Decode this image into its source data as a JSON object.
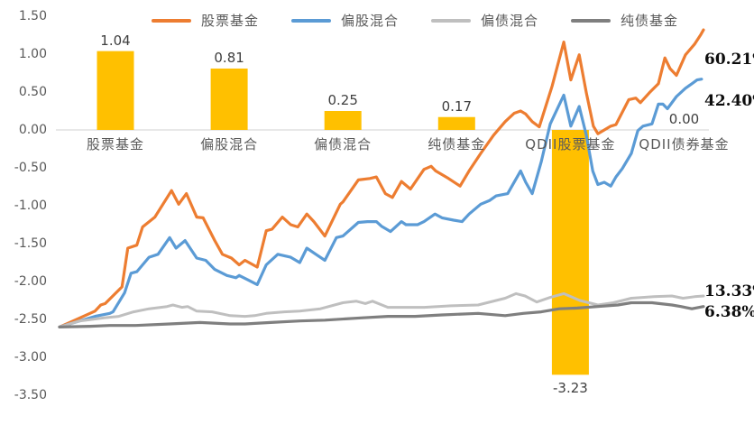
{
  "chart_data": {
    "type": "bar+line combo",
    "title": "",
    "grid": "off",
    "y_axis": {
      "min": -3.5,
      "max": 1.5,
      "ticks": [
        "1.50",
        "1.00",
        "0.50",
        "0.00",
        "-0.50",
        "-1.00",
        "-1.50",
        "-2.00",
        "-2.50",
        "-3.00",
        "-3.50"
      ]
    },
    "zero_line_color": "#d9d9d9",
    "bar_series": {
      "name": "bar-values",
      "color": "#FFC000",
      "categories": [
        "股票基金",
        "偏股混合",
        "偏债混合",
        "纯债基金",
        "QDII股票基金",
        "QDII债券基金"
      ],
      "values": [
        1.04,
        0.81,
        0.25,
        0.17,
        -3.23,
        0.0
      ],
      "value_labels": [
        "1.04",
        "0.81",
        "0.25",
        "0.17",
        "-3.23",
        "0.00"
      ]
    },
    "line_series": [
      {
        "name": "股票基金",
        "color": "#ED7D31",
        "end_label": "60.21%",
        "points": [
          [
            0.0,
            -2.6
          ],
          [
            0.055,
            -2.39
          ],
          [
            0.064,
            -2.31
          ],
          [
            0.071,
            -2.29
          ],
          [
            0.097,
            -2.07
          ],
          [
            0.106,
            -1.56
          ],
          [
            0.12,
            -1.52
          ],
          [
            0.129,
            -1.28
          ],
          [
            0.148,
            -1.15
          ],
          [
            0.174,
            -0.8
          ],
          [
            0.185,
            -0.98
          ],
          [
            0.197,
            -0.84
          ],
          [
            0.213,
            -1.15
          ],
          [
            0.223,
            -1.16
          ],
          [
            0.241,
            -1.46
          ],
          [
            0.253,
            -1.64
          ],
          [
            0.267,
            -1.69
          ],
          [
            0.279,
            -1.78
          ],
          [
            0.288,
            -1.72
          ],
          [
            0.307,
            -1.81
          ],
          [
            0.321,
            -1.33
          ],
          [
            0.33,
            -1.31
          ],
          [
            0.346,
            -1.15
          ],
          [
            0.359,
            -1.25
          ],
          [
            0.37,
            -1.28
          ],
          [
            0.384,
            -1.11
          ],
          [
            0.395,
            -1.21
          ],
          [
            0.412,
            -1.4
          ],
          [
            0.436,
            -0.98
          ],
          [
            0.44,
            -0.95
          ],
          [
            0.464,
            -0.66
          ],
          [
            0.482,
            -0.64
          ],
          [
            0.492,
            -0.62
          ],
          [
            0.506,
            -0.84
          ],
          [
            0.517,
            -0.89
          ],
          [
            0.531,
            -0.68
          ],
          [
            0.545,
            -0.78
          ],
          [
            0.566,
            -0.52
          ],
          [
            0.577,
            -0.48
          ],
          [
            0.584,
            -0.54
          ],
          [
            0.604,
            -0.64
          ],
          [
            0.622,
            -0.74
          ],
          [
            0.636,
            -0.54
          ],
          [
            0.654,
            -0.31
          ],
          [
            0.674,
            -0.07
          ],
          [
            0.692,
            0.11
          ],
          [
            0.706,
            0.22
          ],
          [
            0.716,
            0.25
          ],
          [
            0.724,
            0.21
          ],
          [
            0.734,
            0.11
          ],
          [
            0.745,
            0.04
          ],
          [
            0.765,
            0.58
          ],
          [
            0.783,
            1.16
          ],
          [
            0.794,
            0.66
          ],
          [
            0.807,
            0.99
          ],
          [
            0.818,
            0.49
          ],
          [
            0.829,
            0.05
          ],
          [
            0.836,
            -0.05
          ],
          [
            0.856,
            0.05
          ],
          [
            0.864,
            0.07
          ],
          [
            0.884,
            0.4
          ],
          [
            0.895,
            0.42
          ],
          [
            0.902,
            0.36
          ],
          [
            0.916,
            0.49
          ],
          [
            0.93,
            0.61
          ],
          [
            0.94,
            0.95
          ],
          [
            0.948,
            0.81
          ],
          [
            0.958,
            0.72
          ],
          [
            0.972,
            0.99
          ],
          [
            0.986,
            1.13
          ],
          [
            0.996,
            1.26
          ],
          [
            1.0,
            1.32
          ]
        ]
      },
      {
        "name": "偏股混合",
        "color": "#5B9BD5",
        "end_label": "42.40%",
        "points": [
          [
            0.0,
            -2.6
          ],
          [
            0.055,
            -2.46
          ],
          [
            0.078,
            -2.42
          ],
          [
            0.083,
            -2.4
          ],
          [
            0.101,
            -2.15
          ],
          [
            0.111,
            -1.89
          ],
          [
            0.12,
            -1.87
          ],
          [
            0.139,
            -1.68
          ],
          [
            0.153,
            -1.64
          ],
          [
            0.171,
            -1.42
          ],
          [
            0.181,
            -1.56
          ],
          [
            0.195,
            -1.46
          ],
          [
            0.213,
            -1.69
          ],
          [
            0.227,
            -1.72
          ],
          [
            0.241,
            -1.84
          ],
          [
            0.26,
            -1.92
          ],
          [
            0.274,
            -1.95
          ],
          [
            0.279,
            -1.92
          ],
          [
            0.293,
            -1.98
          ],
          [
            0.307,
            -2.04
          ],
          [
            0.321,
            -1.78
          ],
          [
            0.339,
            -1.64
          ],
          [
            0.359,
            -1.68
          ],
          [
            0.373,
            -1.75
          ],
          [
            0.384,
            -1.56
          ],
          [
            0.398,
            -1.64
          ],
          [
            0.412,
            -1.72
          ],
          [
            0.43,
            -1.42
          ],
          [
            0.44,
            -1.4
          ],
          [
            0.464,
            -1.22
          ],
          [
            0.478,
            -1.21
          ],
          [
            0.492,
            -1.21
          ],
          [
            0.5,
            -1.27
          ],
          [
            0.514,
            -1.34
          ],
          [
            0.531,
            -1.21
          ],
          [
            0.538,
            -1.25
          ],
          [
            0.556,
            -1.25
          ],
          [
            0.566,
            -1.21
          ],
          [
            0.583,
            -1.11
          ],
          [
            0.594,
            -1.16
          ],
          [
            0.612,
            -1.19
          ],
          [
            0.625,
            -1.21
          ],
          [
            0.636,
            -1.11
          ],
          [
            0.654,
            -0.98
          ],
          [
            0.668,
            -0.93
          ],
          [
            0.678,
            -0.87
          ],
          [
            0.696,
            -0.84
          ],
          [
            0.716,
            -0.54
          ],
          [
            0.724,
            -0.69
          ],
          [
            0.734,
            -0.84
          ],
          [
            0.748,
            -0.42
          ],
          [
            0.762,
            0.08
          ],
          [
            0.783,
            0.46
          ],
          [
            0.794,
            0.05
          ],
          [
            0.807,
            0.31
          ],
          [
            0.818,
            -0.07
          ],
          [
            0.828,
            -0.54
          ],
          [
            0.836,
            -0.72
          ],
          [
            0.846,
            -0.69
          ],
          [
            0.856,
            -0.74
          ],
          [
            0.864,
            -0.62
          ],
          [
            0.874,
            -0.51
          ],
          [
            0.888,
            -0.31
          ],
          [
            0.898,
            -0.01
          ],
          [
            0.906,
            0.05
          ],
          [
            0.92,
            0.08
          ],
          [
            0.93,
            0.34
          ],
          [
            0.937,
            0.34
          ],
          [
            0.944,
            0.28
          ],
          [
            0.958,
            0.44
          ],
          [
            0.972,
            0.55
          ],
          [
            0.982,
            0.61
          ],
          [
            0.99,
            0.66
          ],
          [
            0.997,
            0.67
          ]
        ]
      },
      {
        "name": "偏债混合",
        "color": "#BFBFBF",
        "end_label": "13.33%",
        "points": [
          [
            0.0,
            -2.6
          ],
          [
            0.031,
            -2.52
          ],
          [
            0.069,
            -2.48
          ],
          [
            0.092,
            -2.46
          ],
          [
            0.115,
            -2.4
          ],
          [
            0.139,
            -2.36
          ],
          [
            0.167,
            -2.33
          ],
          [
            0.176,
            -2.31
          ],
          [
            0.19,
            -2.34
          ],
          [
            0.199,
            -2.33
          ],
          [
            0.213,
            -2.39
          ],
          [
            0.237,
            -2.4
          ],
          [
            0.265,
            -2.45
          ],
          [
            0.288,
            -2.46
          ],
          [
            0.303,
            -2.45
          ],
          [
            0.321,
            -2.42
          ],
          [
            0.349,
            -2.4
          ],
          [
            0.373,
            -2.39
          ],
          [
            0.405,
            -2.36
          ],
          [
            0.44,
            -2.28
          ],
          [
            0.461,
            -2.26
          ],
          [
            0.475,
            -2.29
          ],
          [
            0.486,
            -2.26
          ],
          [
            0.51,
            -2.34
          ],
          [
            0.566,
            -2.34
          ],
          [
            0.608,
            -2.32
          ],
          [
            0.65,
            -2.31
          ],
          [
            0.692,
            -2.22
          ],
          [
            0.709,
            -2.16
          ],
          [
            0.723,
            -2.19
          ],
          [
            0.741,
            -2.27
          ],
          [
            0.762,
            -2.21
          ],
          [
            0.783,
            -2.16
          ],
          [
            0.808,
            -2.25
          ],
          [
            0.836,
            -2.31
          ],
          [
            0.86,
            -2.28
          ],
          [
            0.888,
            -2.22
          ],
          [
            0.923,
            -2.2
          ],
          [
            0.951,
            -2.19
          ],
          [
            0.968,
            -2.22
          ],
          [
            0.986,
            -2.2
          ],
          [
            1.0,
            -2.19
          ]
        ]
      },
      {
        "name": "纯债基金",
        "color": "#7F7F7F",
        "end_label": "6.38%",
        "points": [
          [
            0.0,
            -2.6
          ],
          [
            0.048,
            -2.59
          ],
          [
            0.078,
            -2.58
          ],
          [
            0.118,
            -2.58
          ],
          [
            0.171,
            -2.56
          ],
          [
            0.218,
            -2.54
          ],
          [
            0.265,
            -2.56
          ],
          [
            0.288,
            -2.56
          ],
          [
            0.328,
            -2.54
          ],
          [
            0.373,
            -2.52
          ],
          [
            0.412,
            -2.51
          ],
          [
            0.468,
            -2.48
          ],
          [
            0.51,
            -2.46
          ],
          [
            0.552,
            -2.46
          ],
          [
            0.594,
            -2.44
          ],
          [
            0.65,
            -2.42
          ],
          [
            0.692,
            -2.45
          ],
          [
            0.72,
            -2.42
          ],
          [
            0.748,
            -2.4
          ],
          [
            0.776,
            -2.36
          ],
          [
            0.804,
            -2.35
          ],
          [
            0.836,
            -2.33
          ],
          [
            0.867,
            -2.31
          ],
          [
            0.888,
            -2.28
          ],
          [
            0.92,
            -2.28
          ],
          [
            0.951,
            -2.31
          ],
          [
            0.965,
            -2.33
          ],
          [
            0.982,
            -2.36
          ],
          [
            1.0,
            -2.33
          ]
        ]
      }
    ]
  }
}
